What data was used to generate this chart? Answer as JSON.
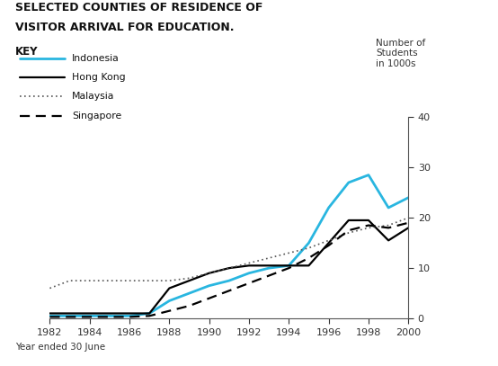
{
  "title_line1": "SELECTED COUNTIES OF RESIDENCE OF",
  "title_line2": "VISITOR ARRIVAL FOR EDUCATION.",
  "ylabel": "Number of\nStudents\nin 1000s",
  "xlabel": "Year ended 30 June",
  "years": [
    1982,
    1983,
    1984,
    1985,
    1986,
    1987,
    1988,
    1989,
    1990,
    1991,
    1992,
    1993,
    1994,
    1995,
    1996,
    1997,
    1998,
    1999,
    2000
  ],
  "indonesia": [
    0.5,
    0.5,
    0.5,
    0.5,
    0.5,
    1.0,
    3.5,
    5.0,
    6.5,
    7.5,
    9.0,
    10.0,
    10.5,
    15.0,
    22.0,
    27.0,
    28.5,
    22.0,
    24.0
  ],
  "hong_kong": [
    1.0,
    1.0,
    1.0,
    1.0,
    1.0,
    1.0,
    6.0,
    7.5,
    9.0,
    10.0,
    10.5,
    10.5,
    10.5,
    10.5,
    15.0,
    19.5,
    19.5,
    15.5,
    18.0
  ],
  "malaysia": [
    6.0,
    7.5,
    7.5,
    7.5,
    7.5,
    7.5,
    7.5,
    8.0,
    9.0,
    10.0,
    11.0,
    12.0,
    13.0,
    14.0,
    15.5,
    17.0,
    18.0,
    18.5,
    20.0
  ],
  "singapore": [
    0.3,
    0.3,
    0.3,
    0.3,
    0.3,
    0.5,
    1.5,
    2.5,
    4.0,
    5.5,
    7.0,
    8.5,
    10.0,
    12.0,
    14.5,
    17.5,
    18.5,
    18.0,
    19.0
  ],
  "ylim": [
    0,
    40
  ],
  "yticks": [
    0,
    10,
    20,
    30,
    40
  ],
  "indonesia_color": "#29b6e0",
  "hong_kong_color": "#000000",
  "malaysia_color": "#555555",
  "singapore_color": "#000000",
  "bg_color": "#ffffff"
}
